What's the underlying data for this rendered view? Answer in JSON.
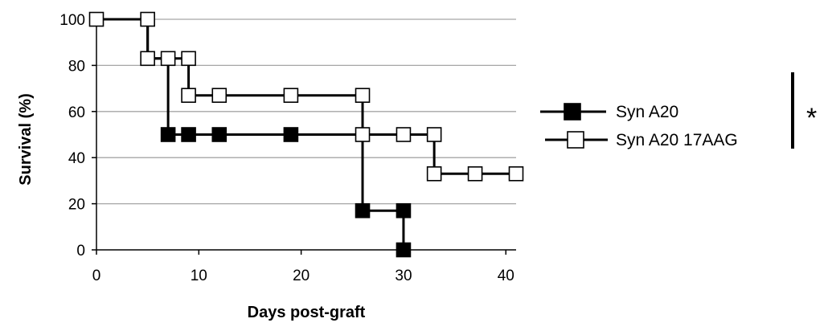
{
  "chart_data": {
    "type": "line",
    "step": true,
    "xlabel": "Days post-graft",
    "ylabel": "Survival (%)",
    "xlim": [
      0,
      41
    ],
    "ylim": [
      0,
      100
    ],
    "xticks": [
      0,
      10,
      20,
      30,
      40
    ],
    "yticks": [
      0,
      20,
      40,
      60,
      80,
      100
    ],
    "grid": "horizontal",
    "legend_position": "right",
    "annotation": "*",
    "series": [
      {
        "name": "Syn A20",
        "marker": "filled-square",
        "color": "#000000",
        "x": [
          0,
          5,
          7,
          9,
          12,
          19,
          26,
          30,
          30
        ],
        "y": [
          100,
          83,
          50,
          50,
          50,
          50,
          17,
          17,
          0
        ],
        "points": [
          [
            7,
            50
          ],
          [
            9,
            50
          ],
          [
            12,
            50
          ],
          [
            19,
            50
          ],
          [
            26,
            17
          ],
          [
            30,
            17
          ],
          [
            30,
            0
          ]
        ]
      },
      {
        "name": "Syn A20 17AAG",
        "marker": "open-square",
        "color": "#000000",
        "x": [
          0,
          5,
          7,
          9,
          12,
          19,
          26,
          30,
          33,
          37,
          41
        ],
        "y": [
          100,
          83,
          83,
          67,
          67,
          67,
          50,
          50,
          33,
          33,
          33
        ],
        "points": [
          [
            0,
            100
          ],
          [
            5,
            100
          ],
          [
            5,
            83
          ],
          [
            7,
            83
          ],
          [
            9,
            83
          ],
          [
            9,
            67
          ],
          [
            12,
            67
          ],
          [
            19,
            67
          ],
          [
            26,
            67
          ],
          [
            26,
            50
          ],
          [
            30,
            50
          ],
          [
            33,
            50
          ],
          [
            33,
            33
          ],
          [
            37,
            33
          ],
          [
            41,
            33
          ]
        ]
      }
    ]
  }
}
